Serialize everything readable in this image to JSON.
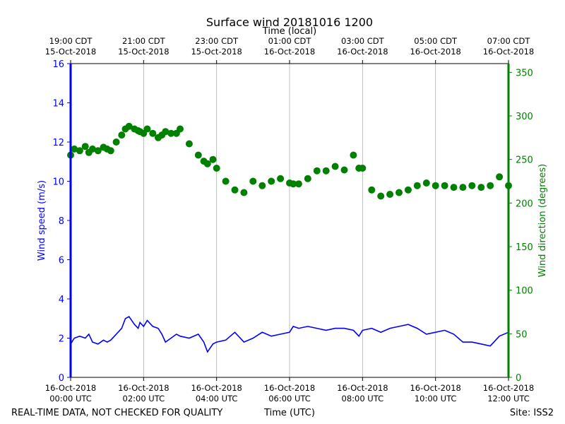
{
  "chart_data": {
    "type": "line",
    "title": "Surface wind 20181016 1200",
    "top_axis_label": "Time (local)",
    "xlabel": "Time (UTC)",
    "ylabel_left": "Wind speed (m/s)",
    "ylabel_right": "Wind direction (degrees)",
    "x_range_hours_utc": [
      0,
      12
    ],
    "ylim_left": [
      0,
      16
    ],
    "ylim_right": [
      0,
      360
    ],
    "left_ticks": [
      "0",
      "2",
      "4",
      "6",
      "8",
      "10",
      "12",
      "14",
      "16"
    ],
    "right_ticks": [
      "0",
      "50",
      "100",
      "150",
      "200",
      "250",
      "300",
      "350"
    ],
    "bottom_ticks": [
      {
        "hour": 0,
        "line1": "16-Oct-2018",
        "line2": "00:00 UTC"
      },
      {
        "hour": 2,
        "line1": "16-Oct-2018",
        "line2": "02:00 UTC"
      },
      {
        "hour": 4,
        "line1": "16-Oct-2018",
        "line2": "04:00 UTC"
      },
      {
        "hour": 6,
        "line1": "16-Oct-2018",
        "line2": "06:00 UTC"
      },
      {
        "hour": 8,
        "line1": "16-Oct-2018",
        "line2": "08:00 UTC"
      },
      {
        "hour": 10,
        "line1": "16-Oct-2018",
        "line2": "10:00 UTC"
      },
      {
        "hour": 12,
        "line1": "16-Oct-2018",
        "line2": "12:00 UTC"
      }
    ],
    "top_ticks": [
      {
        "hour": 0,
        "line1": "19:00 CDT",
        "line2": "15-Oct-2018"
      },
      {
        "hour": 2,
        "line1": "21:00 CDT",
        "line2": "15-Oct-2018"
      },
      {
        "hour": 4,
        "line1": "23:00 CDT",
        "line2": "15-Oct-2018"
      },
      {
        "hour": 6,
        "line1": "01:00 CDT",
        "line2": "16-Oct-2018"
      },
      {
        "hour": 8,
        "line1": "03:00 CDT",
        "line2": "16-Oct-2018"
      },
      {
        "hour": 10,
        "line1": "05:00 CDT",
        "line2": "16-Oct-2018"
      },
      {
        "hour": 12,
        "line1": "07:00 CDT",
        "line2": "16-Oct-2018"
      }
    ],
    "series": [
      {
        "name": "Wind speed (m/s)",
        "axis": "left",
        "color": "#0000ff",
        "style": "line",
        "x": [
          0.0,
          0.1,
          0.25,
          0.4,
          0.5,
          0.6,
          0.75,
          0.9,
          1.0,
          1.1,
          1.25,
          1.4,
          1.5,
          1.6,
          1.75,
          1.85,
          1.9,
          2.0,
          2.1,
          2.25,
          2.4,
          2.5,
          2.6,
          2.75,
          2.9,
          3.0,
          3.25,
          3.5,
          3.65,
          3.75,
          3.9,
          4.0,
          4.25,
          4.5,
          4.75,
          5.0,
          5.25,
          5.5,
          5.75,
          6.0,
          6.1,
          6.25,
          6.5,
          6.75,
          7.0,
          7.25,
          7.5,
          7.75,
          7.9,
          8.0,
          8.25,
          8.5,
          8.75,
          9.0,
          9.25,
          9.5,
          9.75,
          10.0,
          10.25,
          10.5,
          10.75,
          11.0,
          11.25,
          11.5,
          11.75,
          12.0
        ],
        "y": [
          1.7,
          2.0,
          2.1,
          2.0,
          2.2,
          1.8,
          1.7,
          1.9,
          1.8,
          1.9,
          2.2,
          2.5,
          3.0,
          3.1,
          2.7,
          2.5,
          2.8,
          2.6,
          2.9,
          2.6,
          2.5,
          2.2,
          1.8,
          2.0,
          2.2,
          2.1,
          2.0,
          2.2,
          1.8,
          1.3,
          1.7,
          1.8,
          1.9,
          2.3,
          1.8,
          2.0,
          2.3,
          2.1,
          2.2,
          2.3,
          2.6,
          2.5,
          2.6,
          2.5,
          2.4,
          2.5,
          2.5,
          2.4,
          2.1,
          2.4,
          2.5,
          2.3,
          2.5,
          2.6,
          2.7,
          2.5,
          2.2,
          2.3,
          2.4,
          2.2,
          1.8,
          1.8,
          1.7,
          1.6,
          2.1,
          2.3
        ]
      },
      {
        "name": "Wind direction (degrees)",
        "axis": "right",
        "color": "#008000",
        "style": "markers",
        "x": [
          0.0,
          0.1,
          0.25,
          0.4,
          0.5,
          0.6,
          0.75,
          0.9,
          1.0,
          1.1,
          1.25,
          1.4,
          1.5,
          1.6,
          1.75,
          1.85,
          1.9,
          2.0,
          2.1,
          2.25,
          2.4,
          2.5,
          2.6,
          2.75,
          2.9,
          3.0,
          3.25,
          3.5,
          3.65,
          3.75,
          3.9,
          4.0,
          4.25,
          4.5,
          4.75,
          5.0,
          5.25,
          5.5,
          5.75,
          6.0,
          6.1,
          6.25,
          6.5,
          6.75,
          7.0,
          7.25,
          7.5,
          7.75,
          7.9,
          8.0,
          8.25,
          8.5,
          8.75,
          9.0,
          9.25,
          9.5,
          9.75,
          10.0,
          10.25,
          10.5,
          10.75,
          11.0,
          11.25,
          11.5,
          11.75,
          12.0
        ],
        "y": [
          255,
          262,
          260,
          265,
          258,
          262,
          260,
          264,
          262,
          260,
          270,
          278,
          285,
          288,
          285,
          283,
          282,
          280,
          285,
          280,
          275,
          278,
          282,
          280,
          280,
          285,
          268,
          255,
          248,
          245,
          250,
          240,
          225,
          215,
          212,
          225,
          220,
          225,
          228,
          223,
          222,
          222,
          228,
          237,
          237,
          242,
          238,
          255,
          240,
          240,
          215,
          208,
          210,
          212,
          215,
          220,
          223,
          220,
          220,
          218,
          218,
          220,
          218,
          220,
          230,
          220
        ]
      }
    ]
  },
  "footer": {
    "left_note": "REAL-TIME DATA, NOT CHECKED FOR QUALITY",
    "site": "Site: ISS2"
  }
}
